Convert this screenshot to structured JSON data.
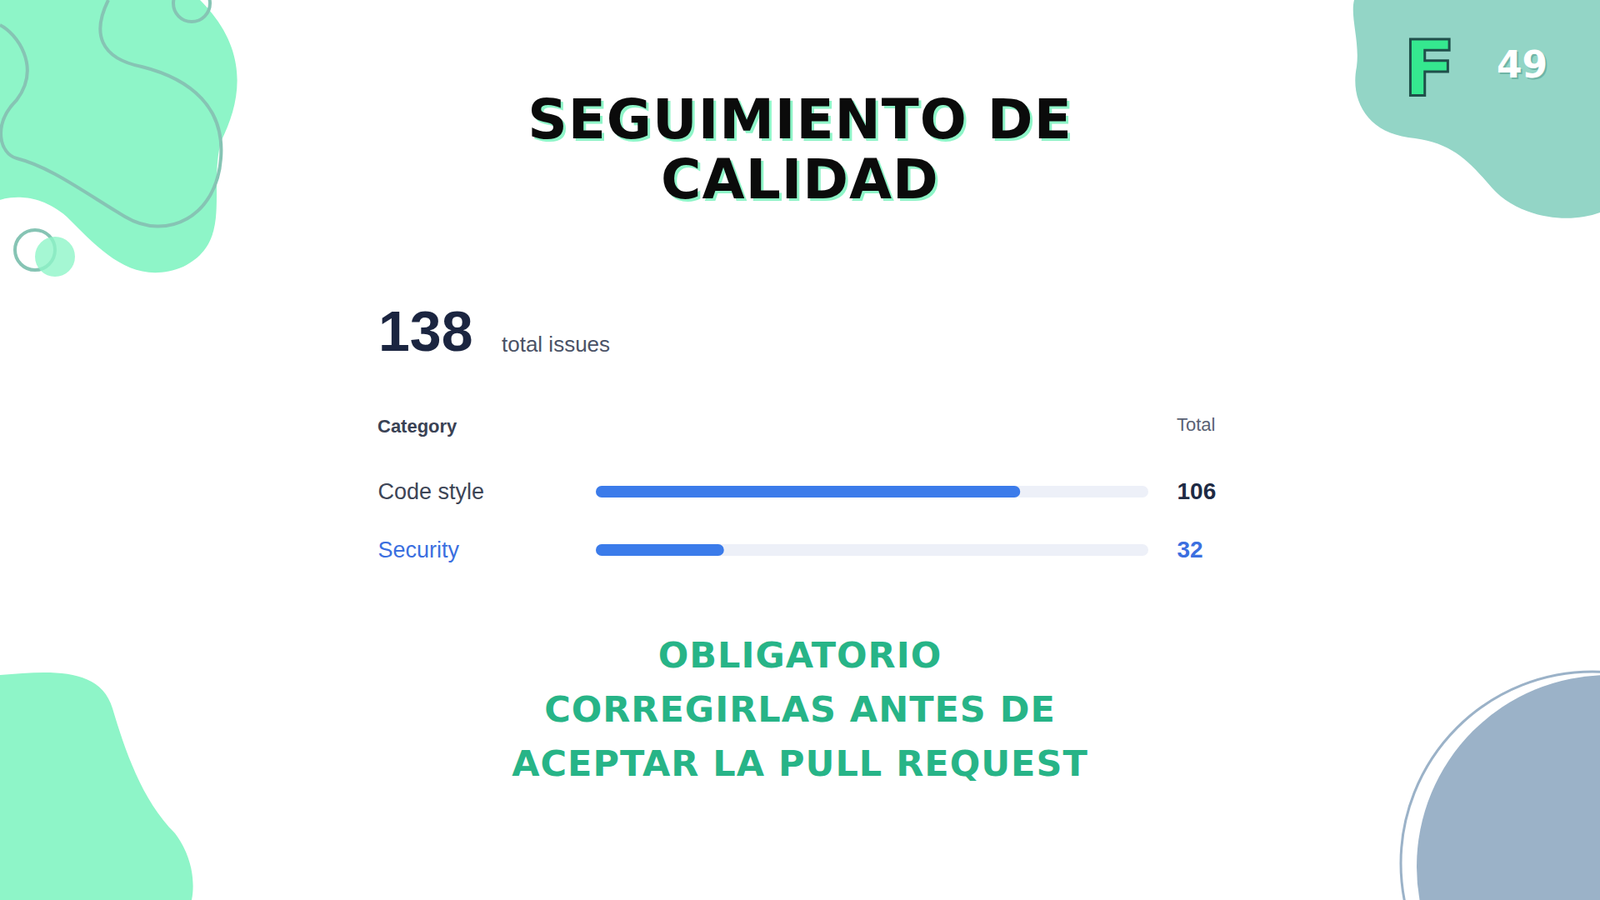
{
  "page": {
    "logo": "F",
    "number": 49
  },
  "summary": {
    "value": 138,
    "label": "total issues"
  },
  "chart_data": {
    "type": "bar",
    "orientation": "horizontal",
    "title": "SEGUIMIENTO DE CALIDAD",
    "ylabel": "Category",
    "value_header": "Total",
    "categories": [
      "Code style",
      "Security"
    ],
    "values": [
      106,
      32
    ],
    "color": "#3b7bea",
    "xlim": [
      0,
      138
    ],
    "tick_labels": "y",
    "data_labels": true,
    "grid": false
  },
  "note": [
    "OBLIGATORIO",
    "CORREGIRLAS ANTES DE",
    "ACEPTAR LA PULL REQUEST"
  ]
}
